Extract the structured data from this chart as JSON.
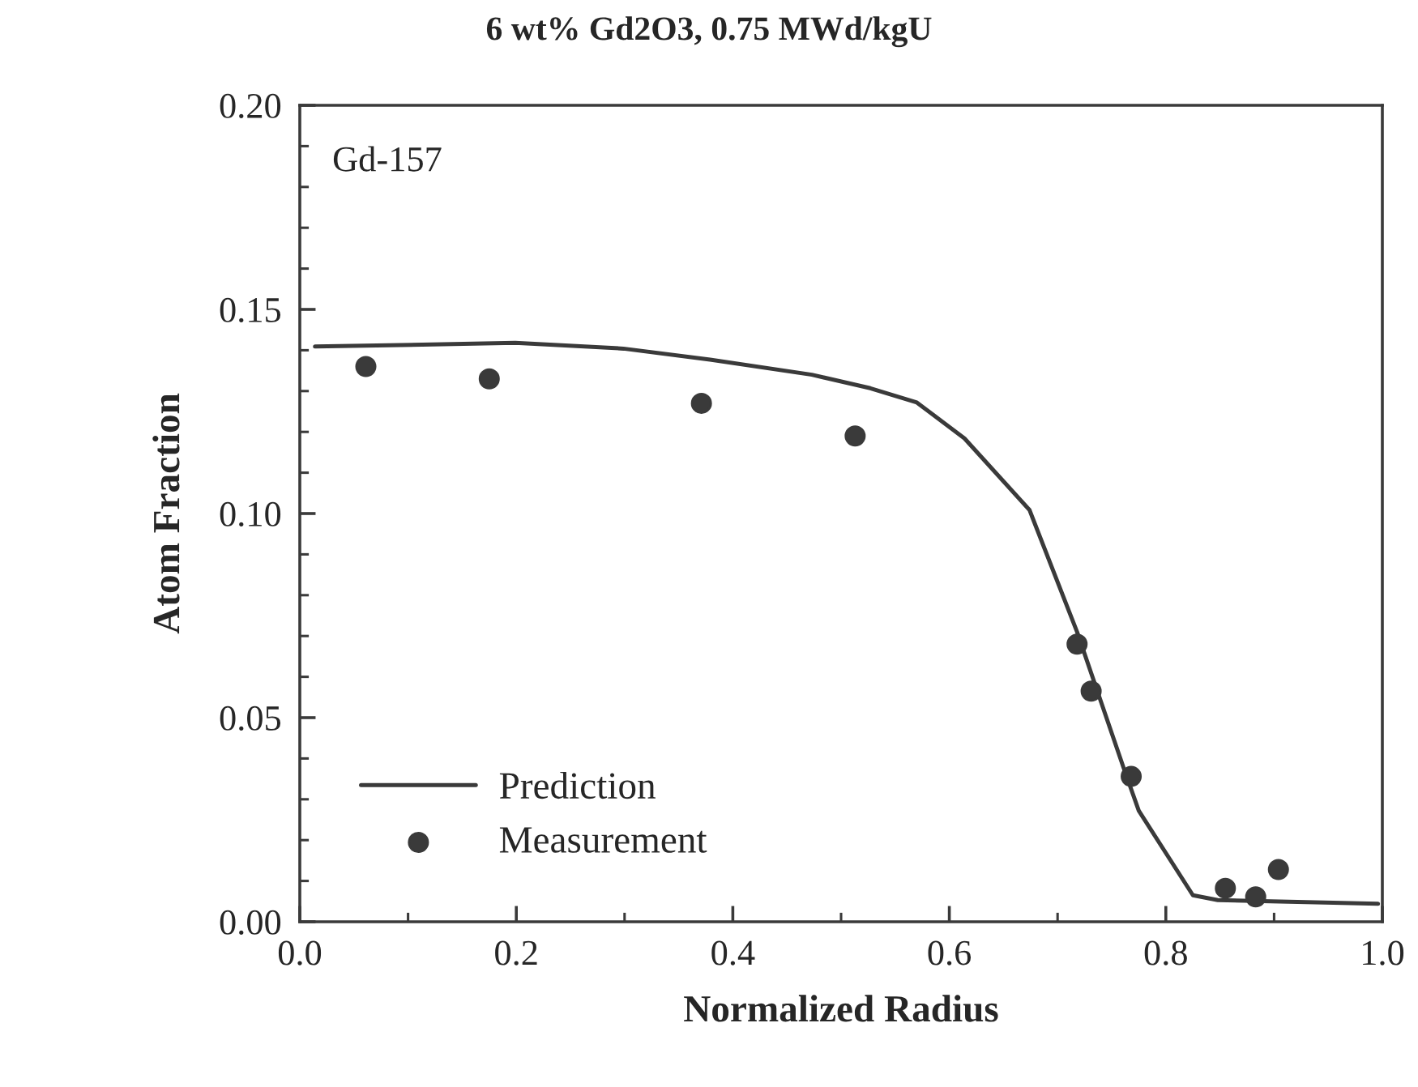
{
  "chart_data": {
    "type": "line",
    "title": "6 wt% Gd2O3, 0.75 MWd/kgU",
    "xlabel": "Normalized Radius",
    "ylabel": "Atom Fraction",
    "annotations": [
      "Gd-157"
    ],
    "xlim": [
      0.0,
      1.0
    ],
    "xticks": [
      {
        "value": 0.0,
        "label": "0.0"
      },
      0.2,
      0.4,
      0.6,
      0.8,
      {
        "value": 1.0,
        "label": "1.0"
      }
    ],
    "ylim": [
      0.0,
      0.2
    ],
    "yticks": [
      {
        "value": 0.0,
        "label": "0.00"
      },
      0.05,
      {
        "value": 0.1,
        "label": "0.10"
      },
      0.15,
      {
        "value": 0.2,
        "label": "0.20"
      }
    ],
    "grid": false,
    "legend": "bottom left",
    "series": [
      {
        "name": "Prediction",
        "color": "#3a3a3a",
        "marker": "none",
        "line_style": "solid",
        "x": [
          0.014,
          0.199,
          0.299,
          0.379,
          0.473,
          0.527,
          0.57,
          0.614,
          0.674,
          0.718,
          0.761,
          0.775,
          0.825,
          0.848,
          0.996
        ],
        "values": [
          0.1409,
          0.1418,
          0.1404,
          0.1377,
          0.134,
          0.1307,
          0.1272,
          0.1184,
          0.1009,
          0.071,
          0.0377,
          0.0272,
          0.0065,
          0.0053,
          0.0044
        ]
      },
      {
        "name": "Measurement",
        "type": "scatter",
        "color": "#3a3a3a",
        "marker": "circle",
        "x": [
          0.061,
          0.175,
          0.371,
          0.513,
          0.718,
          0.731,
          0.768,
          0.855,
          0.883,
          0.904
        ],
        "values": [
          0.136,
          0.133,
          0.127,
          0.119,
          0.068,
          0.0565,
          0.0356,
          0.0082,
          0.0061,
          0.0128
        ]
      }
    ]
  }
}
